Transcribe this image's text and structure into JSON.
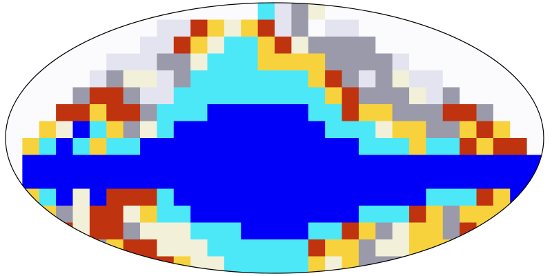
{
  "map": {
    "projection": "mollweide",
    "grid": {
      "cols": 32,
      "rows": 16
    },
    "palette": [
      "#fbfbfd",
      "#e4e4f0",
      "#9a9aaa",
      "#f2f0d8",
      "#f8d23c",
      "#c0330f",
      "#4ce8f8",
      "#0000f8"
    ],
    "cells": [
      "00000000000000061230000000000000",
      "00000000011543451201100000000000",
      "00000000115436645322220000000000",
      "00000011122366644442222100000000",
      "00000123312666666645212311000000",
      "00002552116666666664522231200000",
      "00055455266677777766544222552000",
      "00437642367777777776663442245400",
      "04676466777777777777766646654550",
      "07777777777777777777777777777777",
      "07777777777777777777777777777777",
      "04673755567777777777777776665470",
      "00423553466777777777766654244400",
      "00053552333666777766542344254000",
      "00002245533366666654423344420000",
      "00000122554336666643422211100000"
    ]
  }
}
